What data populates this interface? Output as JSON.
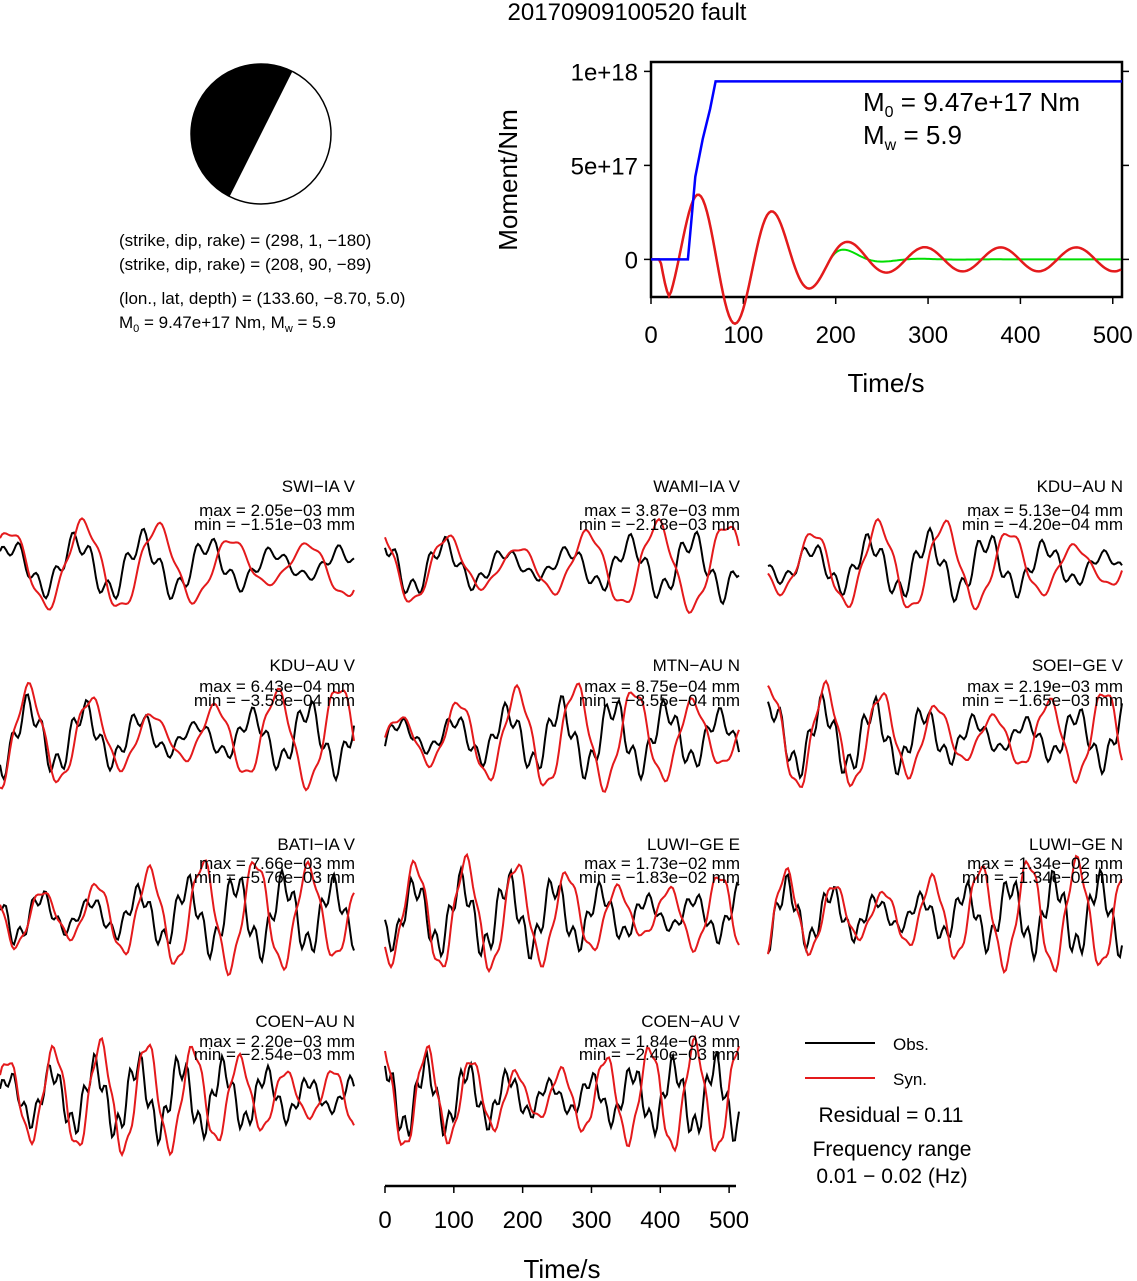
{
  "title": "20170909100520 fault",
  "colors": {
    "obs": "#000000",
    "syn": "#e41a1c",
    "moment": "#0000ff",
    "rate": "#00dd00",
    "rate_syn": "#e41a1c"
  },
  "mechanism": {
    "line1": "(strike, dip, rake) = (298, 1, −180)",
    "line2": "(strike, dip, rake) = (208, 90, −89)",
    "line3": "(lon., lat, depth) = (133.60, −8.70, 5.0)",
    "line4_m0": "M",
    "line4_sub": "0",
    "line4_rest": " = 9.47e+17 Nm, M",
    "line4_sub2": "w",
    "line4_end": " = 5.9"
  },
  "chart_data": [
    {
      "type": "line",
      "name": "moment-function",
      "ylabel": "Moment/Nm",
      "xlabel": "Time/s",
      "xlim": [
        0,
        510
      ],
      "ylim": [
        -200000000000000000,
        1050000000000000000
      ],
      "x_ticks": [
        "0",
        "100",
        "200",
        "300",
        "400",
        "500"
      ],
      "x_tick_values": [
        0,
        100,
        200,
        300,
        400,
        500
      ],
      "y_ticks": [
        "0",
        "5e+17",
        "1e+18"
      ],
      "y_tick_values": [
        0,
        500000000000000000,
        1000000000000000000
      ],
      "annotation_m0": {
        "prefix": "M",
        "sub": "0",
        "rest": " = 9.47e+17 Nm"
      },
      "annotation_mw": {
        "prefix": "M",
        "sub": "w",
        "rest": " = 5.9"
      },
      "cumulative_moment": {
        "x": [
          0,
          40,
          48,
          56,
          64,
          70,
          510
        ],
        "y": [
          0,
          0,
          440000000000000000,
          640000000000000000,
          800000000000000000,
          947000000000000000,
          947000000000000000
        ]
      }
    },
    {
      "type": "line",
      "name": "waveform-fits",
      "xlabel": "Time/s",
      "xlim": [
        0,
        510
      ],
      "x_ticks": [
        "0",
        "100",
        "200",
        "300",
        "400",
        "500"
      ],
      "x_tick_values": [
        0,
        100,
        200,
        300,
        400,
        500
      ],
      "legend": {
        "obs": "Obs.",
        "syn": "Syn.",
        "residual": "Residual = 0.11",
        "freq_label": "Frequency range",
        "freq_value": "0.01 − 0.02 (Hz)"
      },
      "stations": [
        {
          "label": "SWI−IA V",
          "max": "max = 2.05e−03 mm",
          "min": "min = −1.51e−03 mm"
        },
        {
          "label": "WAMI−IA V",
          "max": "max = 3.87e−03 mm",
          "min": "min = −2.18e−03 mm"
        },
        {
          "label": "KDU−AU N",
          "max": "max = 5.13e−04 mm",
          "min": "min = −4.20e−04 mm"
        },
        {
          "label": "KDU−AU V",
          "max": "max = 6.43e−04 mm",
          "min": "min = −3.58e−04 mm"
        },
        {
          "label": "MTN−AU N",
          "max": "max = 8.75e−04 mm",
          "min": "min = −8.55e−04 mm"
        },
        {
          "label": "SOEI−GE V",
          "max": "max = 2.19e−03 mm",
          "min": "min = −1.65e−03 mm"
        },
        {
          "label": "BATI−IA V",
          "max": "max = 7.66e−03 mm",
          "min": "min = −5.76e−03 mm"
        },
        {
          "label": "LUWI−GE E",
          "max": "max = 1.73e−02 mm",
          "min": "min = −1.83e−02 mm"
        },
        {
          "label": "LUWI−GE N",
          "max": "max = 1.34e−02 mm",
          "min": "min = −1.34e−02 mm"
        },
        {
          "label": "COEN−AU N",
          "max": "max = 2.20e−03 mm",
          "min": "min = −2.54e−03 mm"
        },
        {
          "label": "COEN−AU V",
          "max": "max = 1.84e−03 mm",
          "min": "min = −2.40e−03 mm"
        }
      ]
    }
  ]
}
